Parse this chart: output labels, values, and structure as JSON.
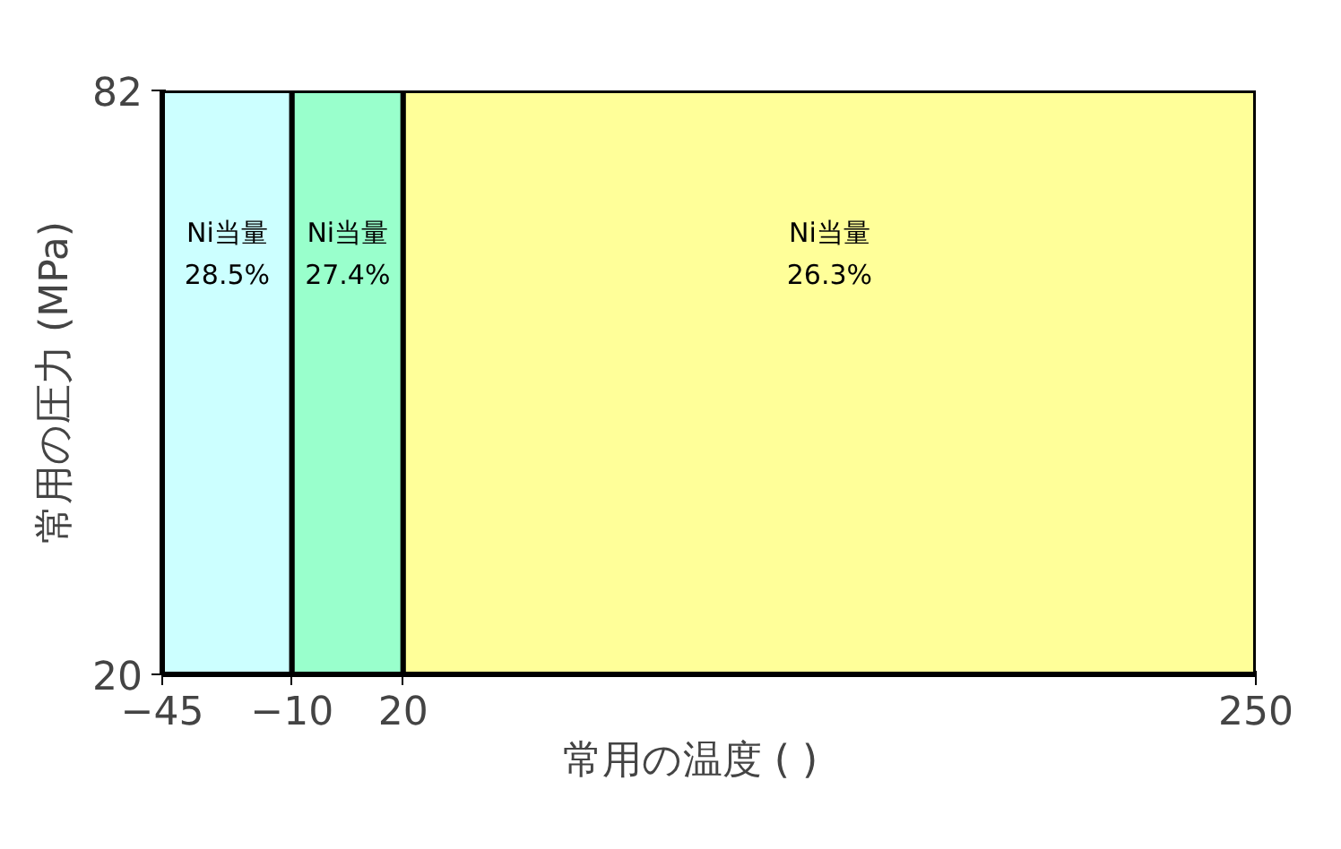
{
  "chart_data": {
    "type": "bar",
    "xlabel": "常用の温度 (    )",
    "ylabel": "常用の圧力 (MPa)",
    "xlim": [
      -45,
      250
    ],
    "ylim": [
      20,
      82
    ],
    "xticks": [
      -45,
      -10,
      20,
      250
    ],
    "yticks": [
      20,
      82
    ],
    "bands": [
      {
        "axis": "x",
        "from": -45,
        "to": -10,
        "label": "Ni当量\n28.5%",
        "color": "#ccffff"
      },
      {
        "axis": "x",
        "from": -10,
        "to": 20,
        "label": "Ni当量\n27.4%",
        "color": "#99ffcc"
      },
      {
        "axis": "x",
        "from": 20,
        "to": 250,
        "label": "Ni当量\n26.3%",
        "color": "#ffff99"
      }
    ]
  }
}
